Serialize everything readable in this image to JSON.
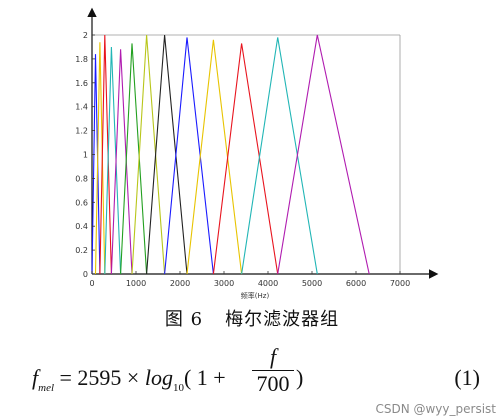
{
  "chart_data": {
    "type": "line",
    "xlabel": "频率(Hz)",
    "ylabel": "",
    "xlim": [
      0,
      7000
    ],
    "ylim": [
      0,
      2
    ],
    "x_ticks": [
      0,
      1000,
      2000,
      3000,
      4000,
      5000,
      6000,
      7000
    ],
    "y_ticks": [
      0,
      0.2,
      0.4,
      0.6,
      0.8,
      1,
      1.2,
      1.4,
      1.6,
      1.8,
      2
    ],
    "grid": false,
    "series": [
      {
        "color": "#1a1aff",
        "x": [
          0,
          80,
          180
        ],
        "y": [
          0,
          1.84,
          0
        ]
      },
      {
        "color": "#e8c400",
        "x": [
          80,
          180,
          290
        ],
        "y": [
          0,
          1.94,
          0
        ]
      },
      {
        "color": "#e8141e",
        "x": [
          180,
          290,
          440
        ],
        "y": [
          0,
          2.0,
          0
        ]
      },
      {
        "color": "#22b6b6",
        "x": [
          290,
          440,
          650
        ],
        "y": [
          0,
          1.9,
          0
        ]
      },
      {
        "color": "#b01cb0",
        "x": [
          440,
          650,
          910
        ],
        "y": [
          0,
          1.88,
          0
        ]
      },
      {
        "color": "#23a020",
        "x": [
          650,
          910,
          1240
        ],
        "y": [
          0,
          1.93,
          0
        ]
      },
      {
        "color": "#b8c61a",
        "x": [
          910,
          1240,
          1650
        ],
        "y": [
          0,
          2.0,
          0
        ]
      },
      {
        "color": "#222222",
        "x": [
          1240,
          1650,
          2160
        ],
        "y": [
          0,
          2.0,
          0
        ]
      },
      {
        "color": "#1a1aff",
        "x": [
          1650,
          2160,
          2760
        ],
        "y": [
          0,
          1.98,
          0
        ]
      },
      {
        "color": "#e8c400",
        "x": [
          2160,
          2760,
          3400
        ],
        "y": [
          0,
          1.96,
          0
        ]
      },
      {
        "color": "#e8141e",
        "x": [
          2760,
          3400,
          4220
        ],
        "y": [
          0,
          1.93,
          0
        ]
      },
      {
        "color": "#22b6b6",
        "x": [
          3400,
          4220,
          5120
        ],
        "y": [
          0,
          1.98,
          0
        ]
      },
      {
        "color": "#b01cb0",
        "x": [
          4220,
          5120,
          6300
        ],
        "y": [
          0,
          2.0,
          0
        ]
      }
    ]
  },
  "caption": {
    "figure_no": "图 6",
    "title": "梅尔滤波器组"
  },
  "formula": {
    "f": "f",
    "sub": "mel",
    "eq_const": "= 2595 ×",
    "log": "log",
    "log_base": "10",
    "paren_open": "( 1 +",
    "frac_num": "f",
    "frac_den": "700",
    "paren_close": ")",
    "number": "(1)"
  },
  "watermark": "CSDN @wyy_persist"
}
